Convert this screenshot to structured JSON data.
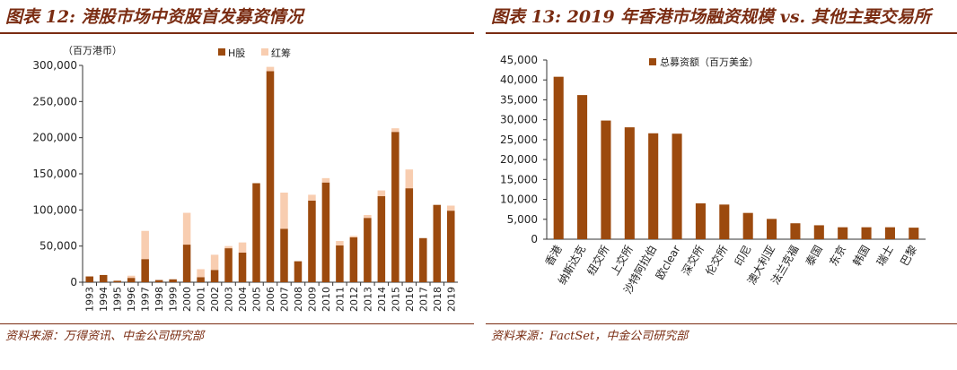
{
  "left": {
    "title": "图表 12: 港股市场中资股首发募资情况",
    "source": "资料来源：万得资讯、中金公司研究部",
    "chart_data": {
      "type": "bar",
      "stacked": true,
      "unit_label": "（百万港币）",
      "categories": [
        "1993",
        "1994",
        "1995",
        "1996",
        "1997",
        "1998",
        "1999",
        "2000",
        "2001",
        "2002",
        "2003",
        "2004",
        "2005",
        "2006",
        "2007",
        "2008",
        "2009",
        "2010",
        "2011",
        "2012",
        "2013",
        "2014",
        "2015",
        "2016",
        "2017",
        "2018",
        "2019"
      ],
      "series": [
        {
          "name": "H股",
          "color": "#9c4a0e",
          "values": [
            8000,
            10000,
            2000,
            6000,
            32000,
            3000,
            4000,
            52000,
            7000,
            17000,
            47000,
            41000,
            137000,
            292000,
            74000,
            29000,
            113000,
            138000,
            51000,
            62000,
            89000,
            119000,
            208000,
            130000,
            61000,
            107000,
            99000
          ]
        },
        {
          "name": "红筹",
          "color": "#f8cdb0",
          "values": [
            0,
            0,
            0,
            3000,
            39000,
            0,
            0,
            44000,
            11000,
            21000,
            3000,
            14000,
            0,
            6000,
            50000,
            0,
            8000,
            6000,
            6000,
            2000,
            4000,
            8000,
            5000,
            26000,
            0,
            0,
            7000
          ]
        }
      ],
      "ylim": [
        0,
        300000
      ],
      "yticks": [
        "0",
        "50,000",
        "100,000",
        "150,000",
        "200,000",
        "250,000",
        "300,000"
      ],
      "legend_position": "top-center",
      "grid": false
    }
  },
  "right": {
    "title": "图表 13: 2019 年香港市场融资规模 vs. 其他主要交易所",
    "source": "资料来源：FactSet，中金公司研究部",
    "chart_data": {
      "type": "bar",
      "categories": [
        "香港",
        "纳斯达克",
        "纽交所",
        "上交所",
        "沙特阿拉伯",
        "欧clear",
        "深交所",
        "伦交所",
        "印尼",
        "澳大利亚",
        "法兰克福",
        "泰国",
        "东京",
        "韩国",
        "瑞士",
        "巴黎"
      ],
      "series": [
        {
          "name": "总募资额（百万美金）",
          "color": "#9c4a0e",
          "values": [
            40800,
            36200,
            29800,
            28100,
            26600,
            26500,
            9000,
            8700,
            6600,
            5100,
            4000,
            3500,
            3000,
            3000,
            3000,
            2900
          ]
        }
      ],
      "ylim": [
        0,
        45000
      ],
      "yticks": [
        "0",
        "5,000",
        "10,000",
        "15,000",
        "20,000",
        "25,000",
        "30,000",
        "35,000",
        "40,000",
        "45,000"
      ],
      "legend_position": "top-center",
      "grid": false
    }
  }
}
